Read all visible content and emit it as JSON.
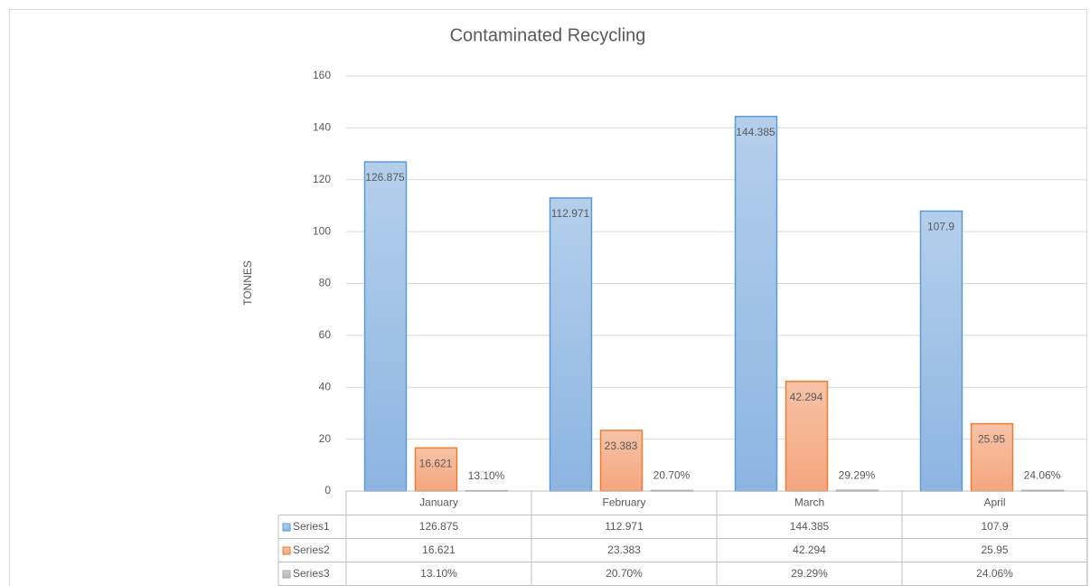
{
  "chart_data": {
    "type": "bar",
    "title": "Contaminated Recycling",
    "y_label": "TONNES",
    "categories": [
      "January",
      "February",
      "March",
      "April"
    ],
    "series": [
      {
        "name": "Series1",
        "color": "#5b9bd5",
        "values": [
          126.875,
          112.971,
          144.385,
          107.9
        ]
      },
      {
        "name": "Series2",
        "color": "#ed7d31",
        "values": [
          16.621,
          23.383,
          42.294,
          25.95
        ]
      },
      {
        "name": "Series3",
        "color": "#a5a5a5",
        "values": [
          0.131,
          0.207,
          0.2929,
          0.2406
        ],
        "value_labels": [
          "13.10%",
          "20.70%",
          "29.29%",
          "24.06%"
        ]
      }
    ],
    "ylim": [
      0,
      160
    ],
    "yticks": [
      0,
      20,
      40,
      60,
      80,
      100,
      120,
      140,
      160
    ],
    "grid": true,
    "data_table": true
  }
}
